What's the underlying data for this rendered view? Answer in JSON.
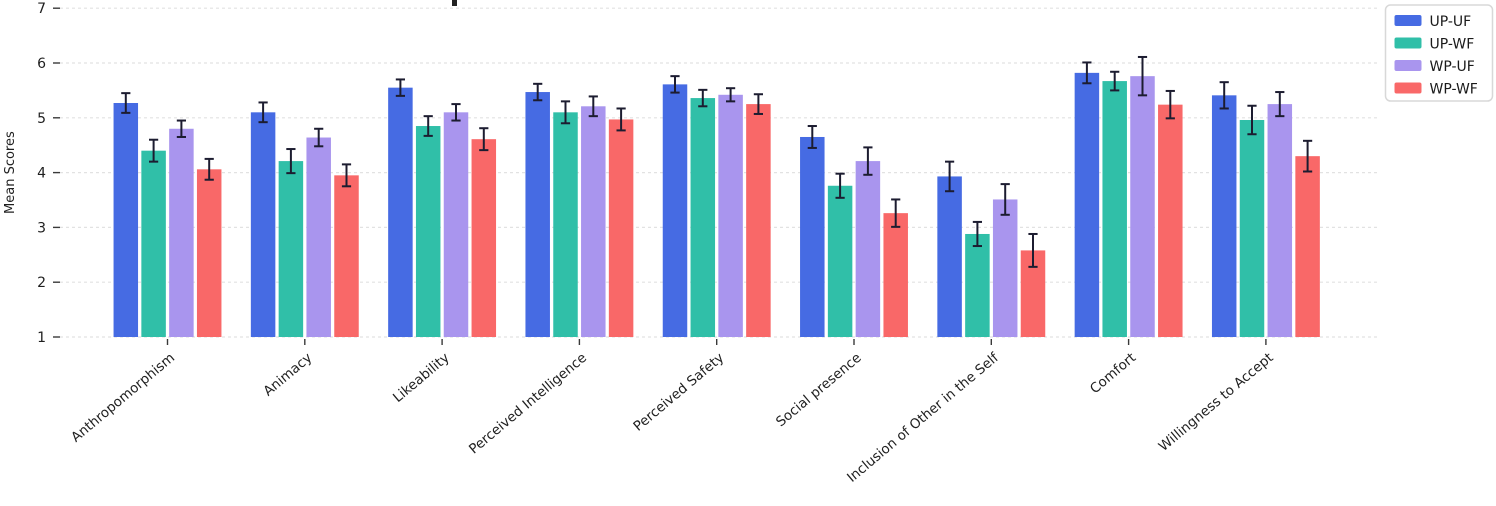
{
  "chart_data": {
    "type": "bar",
    "title_clipped": true,
    "title_fragment": "▪",
    "ylabel": "Mean Scores",
    "xlabel": "",
    "ylim": [
      1,
      7
    ],
    "yticks": [
      1,
      2,
      3,
      4,
      5,
      6,
      7
    ],
    "grid": "horizontal-dashed",
    "legend_position": "upper-right-outside",
    "error_bar_color": "#1c1c30",
    "categories": [
      "Anthropomorphism",
      "Animacy",
      "Likeability",
      "Perceived Intelligence",
      "Perceived Safety",
      "Social presence",
      "Inclusion of Other in the Self",
      "Comfort",
      "Willingness to Accept"
    ],
    "series": [
      {
        "name": "UP-UF",
        "color": "#466be3",
        "values": [
          5.27,
          5.1,
          5.55,
          5.47,
          5.61,
          4.65,
          3.93,
          5.82,
          5.41
        ],
        "errors": [
          0.18,
          0.18,
          0.15,
          0.15,
          0.15,
          0.2,
          0.27,
          0.19,
          0.24
        ]
      },
      {
        "name": "UP-WF",
        "color": "#30bfa8",
        "values": [
          4.4,
          4.21,
          4.85,
          5.1,
          5.36,
          3.76,
          2.88,
          5.67,
          4.96
        ],
        "errors": [
          0.2,
          0.22,
          0.18,
          0.2,
          0.15,
          0.22,
          0.22,
          0.17,
          0.26
        ]
      },
      {
        "name": "WP-UF",
        "color": "#a995ee",
        "values": [
          4.8,
          4.64,
          5.1,
          5.21,
          5.42,
          4.21,
          3.51,
          5.76,
          5.25
        ],
        "errors": [
          0.15,
          0.16,
          0.15,
          0.18,
          0.12,
          0.25,
          0.28,
          0.35,
          0.22
        ]
      },
      {
        "name": "WP-WF",
        "color": "#f96868",
        "values": [
          4.06,
          3.95,
          4.61,
          4.97,
          5.25,
          3.26,
          2.58,
          5.24,
          4.3
        ],
        "errors": [
          0.19,
          0.2,
          0.2,
          0.2,
          0.18,
          0.25,
          0.3,
          0.25,
          0.28
        ]
      }
    ],
    "legend": {
      "items": [
        "UP-UF",
        "UP-WF",
        "WP-UF",
        "WP-WF"
      ]
    }
  }
}
